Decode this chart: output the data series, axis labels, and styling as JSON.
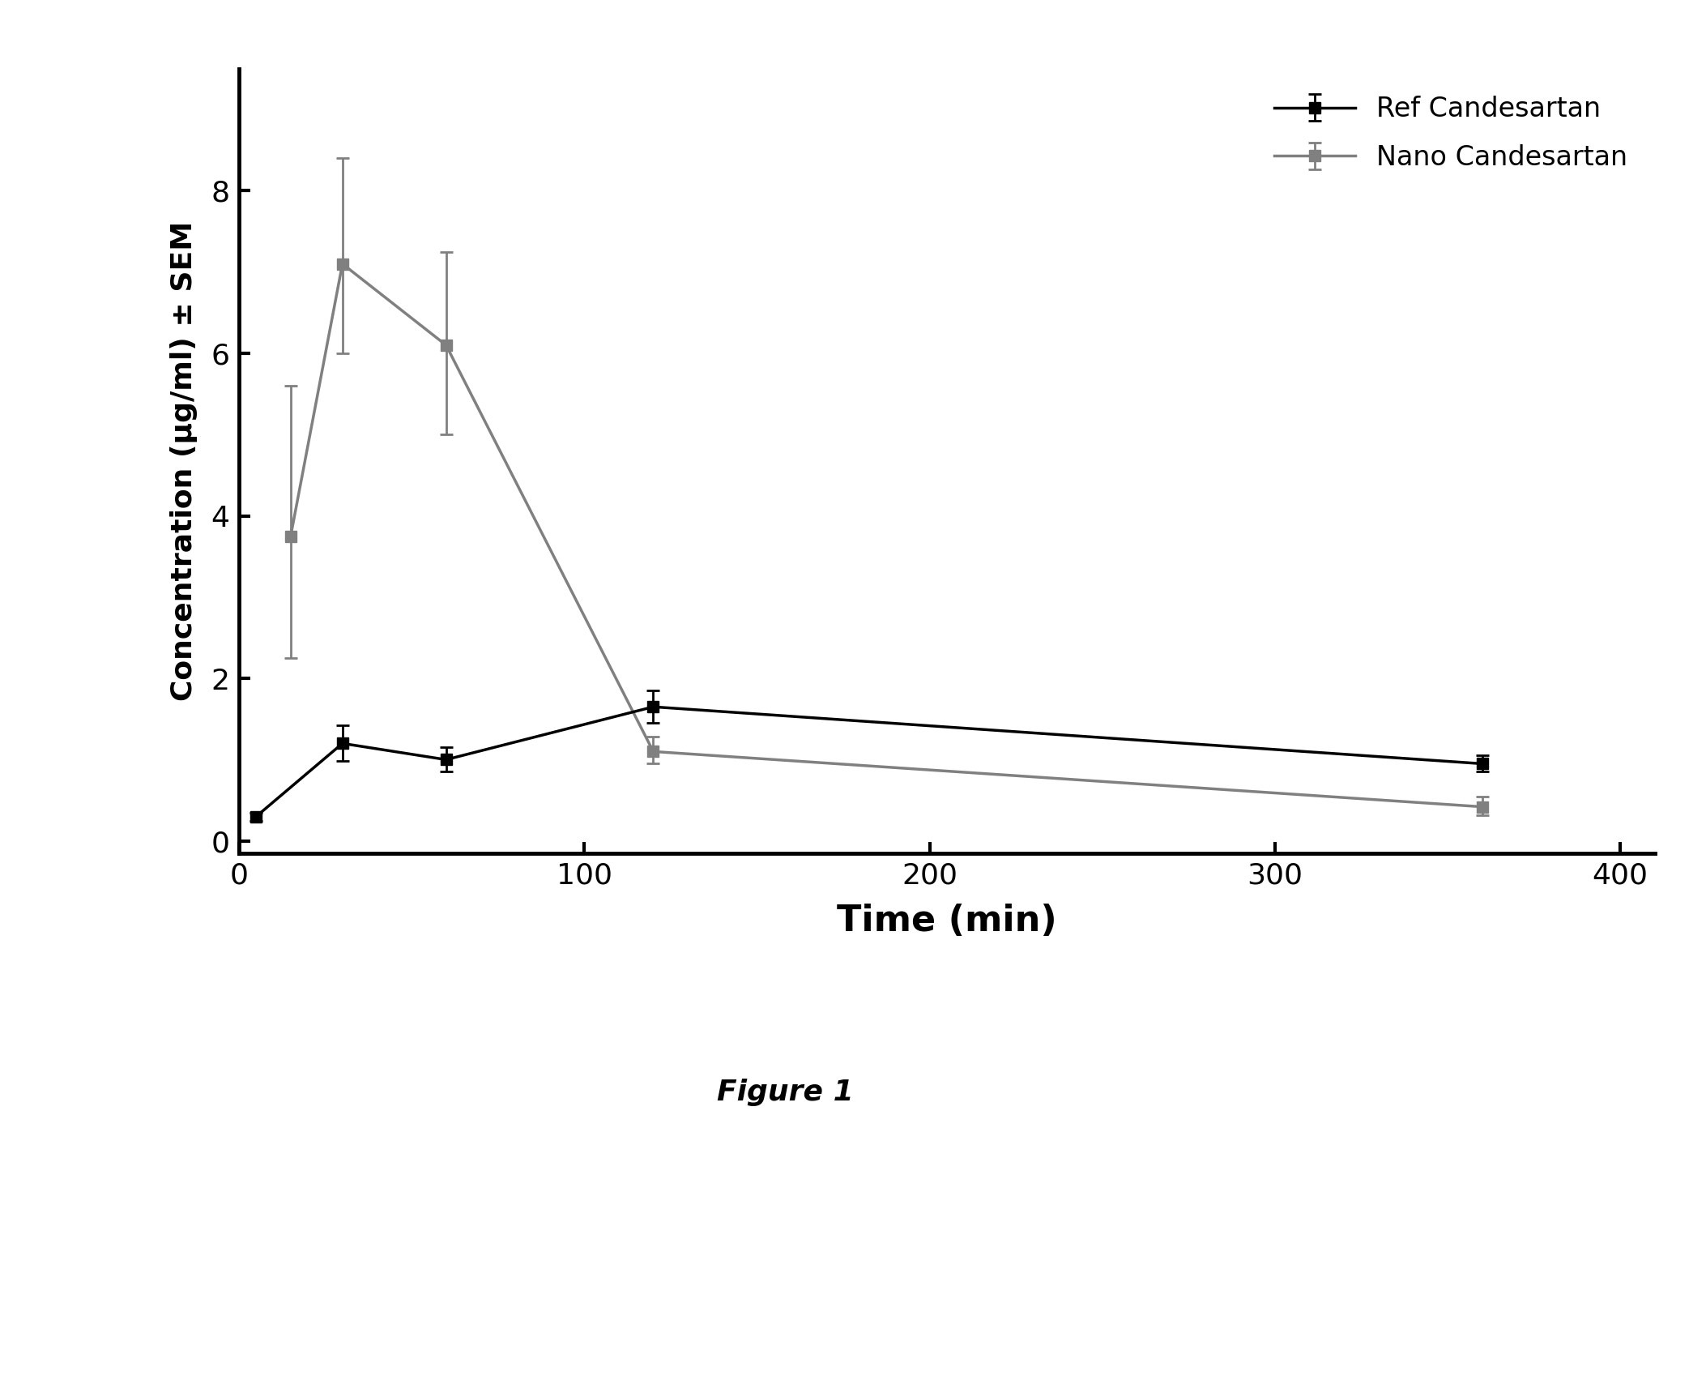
{
  "ref_x": [
    5,
    30,
    60,
    120,
    360
  ],
  "ref_y": [
    0.3,
    1.2,
    1.0,
    1.65,
    0.95
  ],
  "ref_yerr": [
    0.05,
    0.22,
    0.15,
    0.2,
    0.1
  ],
  "nano_x": [
    15,
    30,
    60,
    120,
    360
  ],
  "nano_y": [
    3.75,
    7.1,
    6.1,
    1.1,
    0.42
  ],
  "nano_yerr_upper": [
    1.85,
    1.3,
    1.15,
    0.18,
    0.13
  ],
  "nano_yerr_lower": [
    1.5,
    1.1,
    1.1,
    0.15,
    0.1
  ],
  "ref_color": "#000000",
  "nano_color": "#808080",
  "ref_label": "Ref Candesartan",
  "nano_label": "Nano Candesartan",
  "xlabel": "Time (min)",
  "ylabel": "Concentration (μg/ml) ± SEM",
  "figure_caption": "Figure 1",
  "xlim": [
    0,
    410
  ],
  "ylim": [
    -0.15,
    9.5
  ],
  "xticks": [
    0,
    100,
    200,
    300,
    400
  ],
  "yticks": [
    0,
    2,
    4,
    6,
    8
  ],
  "marker_size": 10,
  "linewidth": 2.5,
  "capsize": 6,
  "background_color": "#ffffff"
}
